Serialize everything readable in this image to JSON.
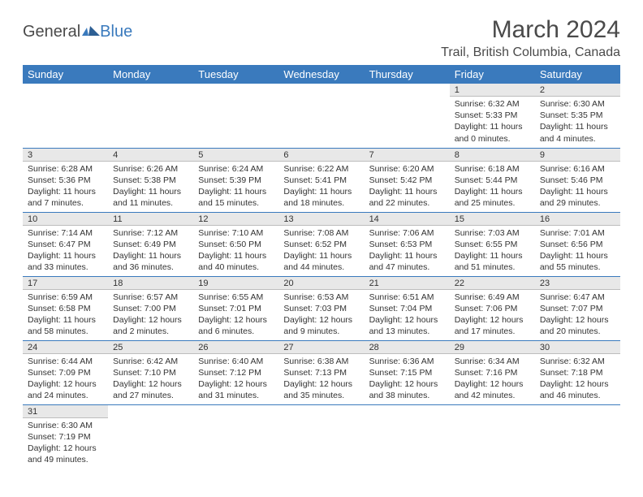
{
  "logo": {
    "part1": "General",
    "part2": "Blue"
  },
  "title": {
    "month": "March 2024",
    "location": "Trail, British Columbia, Canada"
  },
  "colors": {
    "header_bg": "#3a7abd",
    "header_text": "#ffffff",
    "daynum_bg": "#e8e8e8",
    "row_divider": "#3a7abd",
    "text": "#333333"
  },
  "daysOfWeek": [
    "Sunday",
    "Monday",
    "Tuesday",
    "Wednesday",
    "Thursday",
    "Friday",
    "Saturday"
  ],
  "leadingEmpty": 5,
  "cells": [
    {
      "n": "1",
      "sr": "Sunrise: 6:32 AM",
      "ss": "Sunset: 5:33 PM",
      "d1": "Daylight: 11 hours",
      "d2": "and 0 minutes."
    },
    {
      "n": "2",
      "sr": "Sunrise: 6:30 AM",
      "ss": "Sunset: 5:35 PM",
      "d1": "Daylight: 11 hours",
      "d2": "and 4 minutes."
    },
    {
      "n": "3",
      "sr": "Sunrise: 6:28 AM",
      "ss": "Sunset: 5:36 PM",
      "d1": "Daylight: 11 hours",
      "d2": "and 7 minutes."
    },
    {
      "n": "4",
      "sr": "Sunrise: 6:26 AM",
      "ss": "Sunset: 5:38 PM",
      "d1": "Daylight: 11 hours",
      "d2": "and 11 minutes."
    },
    {
      "n": "5",
      "sr": "Sunrise: 6:24 AM",
      "ss": "Sunset: 5:39 PM",
      "d1": "Daylight: 11 hours",
      "d2": "and 15 minutes."
    },
    {
      "n": "6",
      "sr": "Sunrise: 6:22 AM",
      "ss": "Sunset: 5:41 PM",
      "d1": "Daylight: 11 hours",
      "d2": "and 18 minutes."
    },
    {
      "n": "7",
      "sr": "Sunrise: 6:20 AM",
      "ss": "Sunset: 5:42 PM",
      "d1": "Daylight: 11 hours",
      "d2": "and 22 minutes."
    },
    {
      "n": "8",
      "sr": "Sunrise: 6:18 AM",
      "ss": "Sunset: 5:44 PM",
      "d1": "Daylight: 11 hours",
      "d2": "and 25 minutes."
    },
    {
      "n": "9",
      "sr": "Sunrise: 6:16 AM",
      "ss": "Sunset: 5:46 PM",
      "d1": "Daylight: 11 hours",
      "d2": "and 29 minutes."
    },
    {
      "n": "10",
      "sr": "Sunrise: 7:14 AM",
      "ss": "Sunset: 6:47 PM",
      "d1": "Daylight: 11 hours",
      "d2": "and 33 minutes."
    },
    {
      "n": "11",
      "sr": "Sunrise: 7:12 AM",
      "ss": "Sunset: 6:49 PM",
      "d1": "Daylight: 11 hours",
      "d2": "and 36 minutes."
    },
    {
      "n": "12",
      "sr": "Sunrise: 7:10 AM",
      "ss": "Sunset: 6:50 PM",
      "d1": "Daylight: 11 hours",
      "d2": "and 40 minutes."
    },
    {
      "n": "13",
      "sr": "Sunrise: 7:08 AM",
      "ss": "Sunset: 6:52 PM",
      "d1": "Daylight: 11 hours",
      "d2": "and 44 minutes."
    },
    {
      "n": "14",
      "sr": "Sunrise: 7:06 AM",
      "ss": "Sunset: 6:53 PM",
      "d1": "Daylight: 11 hours",
      "d2": "and 47 minutes."
    },
    {
      "n": "15",
      "sr": "Sunrise: 7:03 AM",
      "ss": "Sunset: 6:55 PM",
      "d1": "Daylight: 11 hours",
      "d2": "and 51 minutes."
    },
    {
      "n": "16",
      "sr": "Sunrise: 7:01 AM",
      "ss": "Sunset: 6:56 PM",
      "d1": "Daylight: 11 hours",
      "d2": "and 55 minutes."
    },
    {
      "n": "17",
      "sr": "Sunrise: 6:59 AM",
      "ss": "Sunset: 6:58 PM",
      "d1": "Daylight: 11 hours",
      "d2": "and 58 minutes."
    },
    {
      "n": "18",
      "sr": "Sunrise: 6:57 AM",
      "ss": "Sunset: 7:00 PM",
      "d1": "Daylight: 12 hours",
      "d2": "and 2 minutes."
    },
    {
      "n": "19",
      "sr": "Sunrise: 6:55 AM",
      "ss": "Sunset: 7:01 PM",
      "d1": "Daylight: 12 hours",
      "d2": "and 6 minutes."
    },
    {
      "n": "20",
      "sr": "Sunrise: 6:53 AM",
      "ss": "Sunset: 7:03 PM",
      "d1": "Daylight: 12 hours",
      "d2": "and 9 minutes."
    },
    {
      "n": "21",
      "sr": "Sunrise: 6:51 AM",
      "ss": "Sunset: 7:04 PM",
      "d1": "Daylight: 12 hours",
      "d2": "and 13 minutes."
    },
    {
      "n": "22",
      "sr": "Sunrise: 6:49 AM",
      "ss": "Sunset: 7:06 PM",
      "d1": "Daylight: 12 hours",
      "d2": "and 17 minutes."
    },
    {
      "n": "23",
      "sr": "Sunrise: 6:47 AM",
      "ss": "Sunset: 7:07 PM",
      "d1": "Daylight: 12 hours",
      "d2": "and 20 minutes."
    },
    {
      "n": "24",
      "sr": "Sunrise: 6:44 AM",
      "ss": "Sunset: 7:09 PM",
      "d1": "Daylight: 12 hours",
      "d2": "and 24 minutes."
    },
    {
      "n": "25",
      "sr": "Sunrise: 6:42 AM",
      "ss": "Sunset: 7:10 PM",
      "d1": "Daylight: 12 hours",
      "d2": "and 27 minutes."
    },
    {
      "n": "26",
      "sr": "Sunrise: 6:40 AM",
      "ss": "Sunset: 7:12 PM",
      "d1": "Daylight: 12 hours",
      "d2": "and 31 minutes."
    },
    {
      "n": "27",
      "sr": "Sunrise: 6:38 AM",
      "ss": "Sunset: 7:13 PM",
      "d1": "Daylight: 12 hours",
      "d2": "and 35 minutes."
    },
    {
      "n": "28",
      "sr": "Sunrise: 6:36 AM",
      "ss": "Sunset: 7:15 PM",
      "d1": "Daylight: 12 hours",
      "d2": "and 38 minutes."
    },
    {
      "n": "29",
      "sr": "Sunrise: 6:34 AM",
      "ss": "Sunset: 7:16 PM",
      "d1": "Daylight: 12 hours",
      "d2": "and 42 minutes."
    },
    {
      "n": "30",
      "sr": "Sunrise: 6:32 AM",
      "ss": "Sunset: 7:18 PM",
      "d1": "Daylight: 12 hours",
      "d2": "and 46 minutes."
    },
    {
      "n": "31",
      "sr": "Sunrise: 6:30 AM",
      "ss": "Sunset: 7:19 PM",
      "d1": "Daylight: 12 hours",
      "d2": "and 49 minutes."
    }
  ]
}
